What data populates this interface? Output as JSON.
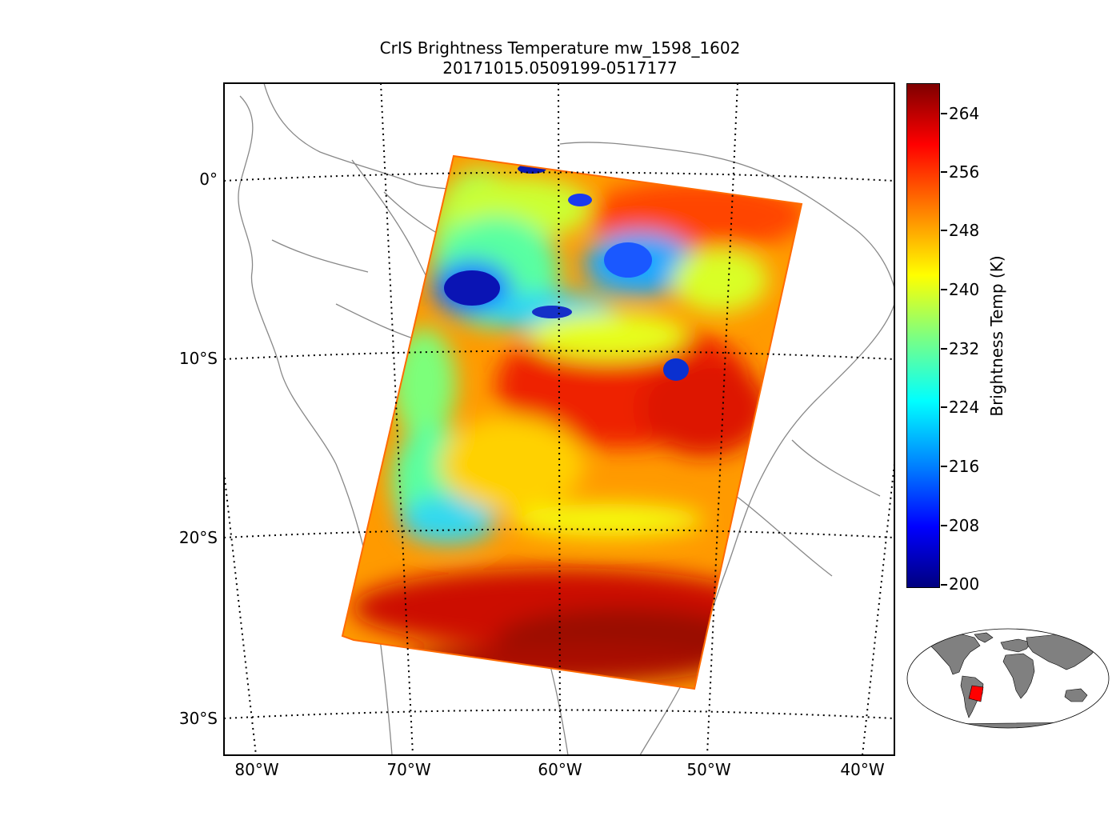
{
  "title": {
    "line1": "CrIS Brightness Temperature mw_1598_1602",
    "line2": "20171015.0509199-0517177"
  },
  "map": {
    "lat_labels": [
      "0°",
      "10°S",
      "20°S",
      "30°S"
    ],
    "lon_labels": [
      "80°W",
      "70°W",
      "60°W",
      "50°W",
      "40°W"
    ],
    "gridline_style": "dotted",
    "granule_footprint_color_scale": "jet"
  },
  "colorbar": {
    "label": "Brightness Temp (K)",
    "ticks": [
      "200",
      "208",
      "216",
      "224",
      "232",
      "240",
      "248",
      "256",
      "264"
    ],
    "min": 200,
    "max": 268,
    "colormap": "jet"
  },
  "colors": {
    "coastline": "#808080",
    "grid": "#000000",
    "inset_land": "#808080",
    "inset_swath": "#ff0000"
  }
}
